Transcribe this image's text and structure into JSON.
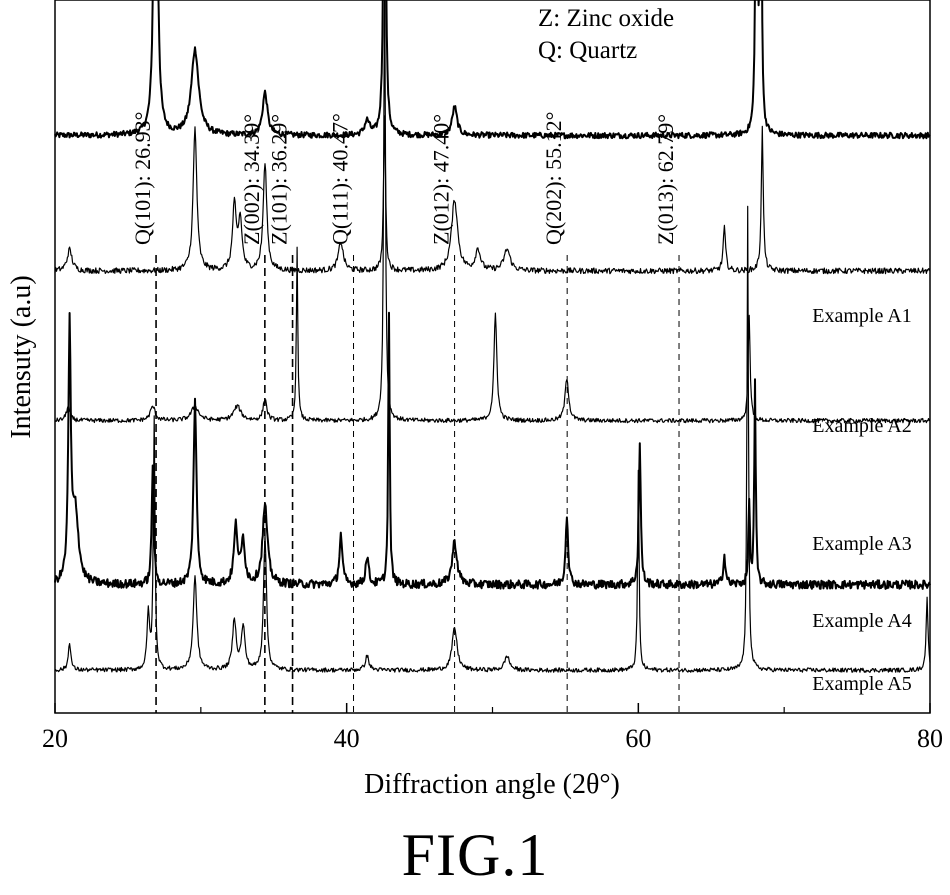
{
  "figure_label": "FIG.1",
  "chart_data": {
    "type": "line",
    "xlabel": "Diffraction angle (2θ°)",
    "ylabel": "Intensuty (a.u)",
    "xlim": [
      20,
      80
    ],
    "x_ticks": [
      20,
      40,
      60,
      80
    ],
    "x_tick_labels": [
      "20",
      "40",
      "60",
      "80"
    ],
    "grid": false,
    "key": [
      "Z: Zinc oxide",
      "Q: Quartz"
    ],
    "reference_lines": [
      {
        "label": "Q(101): 26.93°",
        "x": 26.93
      },
      {
        "label": "Z(002): 34.39°",
        "x": 34.39
      },
      {
        "label": "Z(101): 36.29°",
        "x": 36.29
      },
      {
        "label": "Q(111): 40.47°",
        "x": 40.47
      },
      {
        "label": "Z(012): 47.40°",
        "x": 47.4
      },
      {
        "label": "Q(202): 55.12°",
        "x": 55.12
      },
      {
        "label": "Z(013): 62.79°",
        "x": 62.79
      }
    ],
    "series": [
      {
        "name": "Example A1",
        "baseline": 0.81,
        "noise": 0.004,
        "stroke": 2.0,
        "peaks": [
          [
            26.9,
            0.95,
            0.1
          ],
          [
            29.6,
            0.12,
            0.3
          ],
          [
            34.4,
            0.06,
            0.2
          ],
          [
            41.4,
            0.02,
            0.2
          ],
          [
            42.6,
            0.64,
            0.08
          ],
          [
            47.4,
            0.04,
            0.2
          ],
          [
            68.1,
            0.75,
            0.06
          ],
          [
            68.4,
            0.55,
            0.06
          ]
        ]
      },
      {
        "name": "Example A2",
        "baseline": 0.62,
        "noise": 0.004,
        "stroke": 1.2,
        "peaks": [
          [
            21.0,
            0.03,
            0.2
          ],
          [
            29.6,
            0.2,
            0.15
          ],
          [
            32.3,
            0.09,
            0.15
          ],
          [
            32.7,
            0.07,
            0.15
          ],
          [
            34.4,
            0.15,
            0.15
          ],
          [
            39.6,
            0.04,
            0.2
          ],
          [
            42.6,
            0.22,
            0.08
          ],
          [
            47.4,
            0.1,
            0.25
          ],
          [
            49.0,
            0.03,
            0.2
          ],
          [
            51.0,
            0.03,
            0.25
          ],
          [
            65.9,
            0.06,
            0.1
          ],
          [
            68.5,
            0.2,
            0.08
          ]
        ]
      },
      {
        "name": "Example A3",
        "baseline": 0.41,
        "noise": 0.003,
        "stroke": 1.2,
        "peaks": [
          [
            20.9,
            0.02,
            0.15
          ],
          [
            26.7,
            0.02,
            0.2
          ],
          [
            29.6,
            0.02,
            0.3
          ],
          [
            32.5,
            0.02,
            0.3
          ],
          [
            34.4,
            0.03,
            0.15
          ],
          [
            36.6,
            0.24,
            0.06
          ],
          [
            42.6,
            0.65,
            0.07
          ],
          [
            50.2,
            0.15,
            0.12
          ],
          [
            55.1,
            0.06,
            0.15
          ],
          [
            67.6,
            0.15,
            0.08
          ]
        ]
      },
      {
        "name": "Example A4",
        "baseline": 0.18,
        "noise": 0.006,
        "stroke": 2.0,
        "peaks": [
          [
            21.0,
            0.35,
            0.1
          ],
          [
            21.4,
            0.1,
            0.25
          ],
          [
            26.7,
            0.17,
            0.08
          ],
          [
            29.6,
            0.26,
            0.12
          ],
          [
            32.4,
            0.08,
            0.15
          ],
          [
            32.9,
            0.06,
            0.15
          ],
          [
            34.4,
            0.11,
            0.2
          ],
          [
            39.6,
            0.07,
            0.12
          ],
          [
            41.4,
            0.04,
            0.12
          ],
          [
            42.9,
            0.38,
            0.06
          ],
          [
            47.4,
            0.06,
            0.2
          ],
          [
            55.1,
            0.1,
            0.1
          ],
          [
            60.1,
            0.2,
            0.08
          ],
          [
            65.9,
            0.04,
            0.1
          ],
          [
            67.6,
            0.12,
            0.06
          ],
          [
            68.0,
            0.28,
            0.06
          ]
        ]
      },
      {
        "name": "Example A5",
        "baseline": 0.06,
        "noise": 0.003,
        "stroke": 1.2,
        "peaks": [
          [
            21.0,
            0.04,
            0.1
          ],
          [
            26.4,
            0.08,
            0.1
          ],
          [
            26.8,
            0.35,
            0.07
          ],
          [
            29.6,
            0.13,
            0.15
          ],
          [
            32.3,
            0.07,
            0.15
          ],
          [
            32.9,
            0.06,
            0.15
          ],
          [
            34.4,
            0.19,
            0.12
          ],
          [
            41.4,
            0.02,
            0.15
          ],
          [
            47.4,
            0.06,
            0.2
          ],
          [
            51.0,
            0.02,
            0.2
          ],
          [
            60.0,
            0.28,
            0.06
          ],
          [
            67.5,
            0.65,
            0.06
          ],
          [
            79.8,
            0.1,
            0.08
          ]
        ]
      }
    ]
  }
}
